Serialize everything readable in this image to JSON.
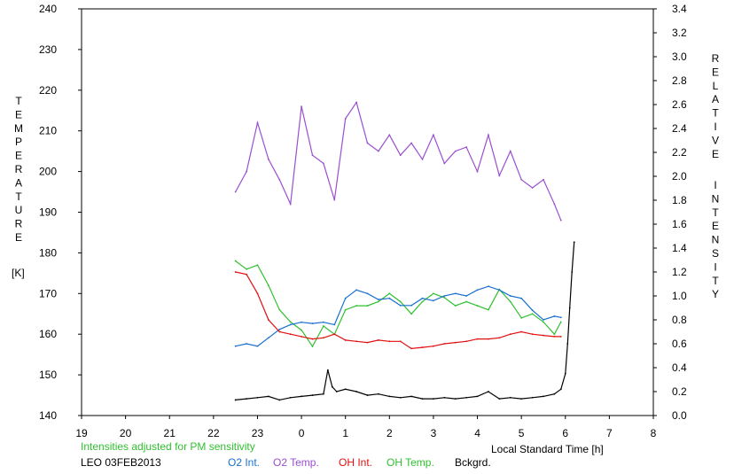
{
  "chart_data": {
    "type": "line",
    "x_axis": {
      "label": "Local Standard Time [h]",
      "ticks": [
        "19",
        "20",
        "21",
        "22",
        "23",
        "0",
        "1",
        "2",
        "3",
        "4",
        "5",
        "6",
        "7",
        "8"
      ],
      "range_hours": [
        19,
        32
      ]
    },
    "y_left": {
      "label_letters": [
        "T",
        "E",
        "M",
        "P",
        "E",
        "R",
        "A",
        "T",
        "U",
        "R",
        "E"
      ],
      "unit": "[K]",
      "range": [
        140,
        240
      ],
      "ticks": [
        "140",
        "150",
        "160",
        "170",
        "180",
        "190",
        "200",
        "210",
        "220",
        "230",
        "240"
      ]
    },
    "y_right": {
      "label_word1": [
        "R",
        "E",
        "L",
        "A",
        "T",
        "I",
        "V",
        "E"
      ],
      "label_word2": [
        "I",
        "N",
        "T",
        "E",
        "N",
        "S",
        "I",
        "T",
        "Y"
      ],
      "range": [
        0,
        3.4
      ],
      "ticks": [
        "0.0",
        "0.2",
        "0.4",
        "0.6",
        "0.8",
        "1.0",
        "1.2",
        "1.4",
        "1.6",
        "1.8",
        "2.0",
        "2.2",
        "2.4",
        "2.6",
        "2.8",
        "3.0",
        "3.2",
        "3.4"
      ]
    },
    "annotations": {
      "note": "Intensities adjusted for PM sensitivity",
      "station": "LEO 03FEB2013"
    },
    "legend": [
      {
        "label": "O2 Int.",
        "color": "#1a6fd0"
      },
      {
        "label": "O2 Temp.",
        "color": "#9a4fd0"
      },
      {
        "label": "OH Int.",
        "color": "#e01010"
      },
      {
        "label": "OH Temp.",
        "color": "#30c030"
      },
      {
        "label": "Bckgrd.",
        "color": "#000000"
      }
    ],
    "series": [
      {
        "name": "O2 Temp.",
        "axis": "left",
        "x": [
          22.5,
          22.75,
          23,
          23.25,
          23.5,
          23.75,
          24,
          24.25,
          24.5,
          24.75,
          25,
          25.25,
          25.5,
          25.75,
          26,
          26.25,
          26.5,
          26.75,
          27,
          27.25,
          27.5,
          27.75,
          28,
          28.25,
          28.5,
          28.75,
          29,
          29.25,
          29.5,
          29.75,
          29.9
        ],
        "y": [
          195,
          200,
          212,
          203,
          198,
          192,
          216,
          204,
          202,
          193,
          213,
          217,
          207,
          205,
          209,
          204,
          207,
          203,
          209,
          202,
          205,
          206,
          200,
          209,
          199,
          205,
          198,
          196,
          198,
          192,
          188
        ]
      },
      {
        "name": "OH Temp.",
        "axis": "left",
        "x": [
          22.5,
          22.75,
          23,
          23.25,
          23.5,
          23.75,
          24,
          24.25,
          24.5,
          24.75,
          25,
          25.25,
          25.5,
          25.75,
          26,
          26.25,
          26.5,
          26.75,
          27,
          27.25,
          27.5,
          27.75,
          28,
          28.25,
          28.5,
          28.75,
          29,
          29.25,
          29.5,
          29.75,
          29.9
        ],
        "y": [
          178,
          176,
          177,
          172,
          166,
          163,
          161,
          157,
          162,
          160,
          166,
          167,
          167,
          168,
          170,
          168,
          165,
          168,
          170,
          169,
          167,
          168,
          167,
          166,
          171,
          168,
          164,
          165,
          163,
          160,
          163
        ]
      },
      {
        "name": "O2 Int.",
        "axis": "right",
        "x": [
          22.5,
          22.75,
          23,
          23.25,
          23.5,
          23.75,
          24,
          24.25,
          24.5,
          24.75,
          25,
          25.25,
          25.5,
          25.75,
          26,
          26.25,
          26.5,
          26.75,
          27,
          27.25,
          27.5,
          27.75,
          28,
          28.25,
          28.5,
          28.75,
          29,
          29.25,
          29.5,
          29.75,
          29.9
        ],
        "y": [
          0.58,
          0.6,
          0.58,
          0.65,
          0.72,
          0.76,
          0.78,
          0.77,
          0.78,
          0.76,
          0.98,
          1.05,
          1.02,
          0.97,
          0.98,
          0.92,
          0.92,
          0.98,
          0.96,
          1.0,
          1.02,
          1.0,
          1.05,
          1.08,
          1.05,
          1.0,
          0.98,
          0.88,
          0.8,
          0.83,
          0.82
        ]
      },
      {
        "name": "OH Int.",
        "axis": "right",
        "x": [
          22.5,
          22.75,
          23,
          23.25,
          23.5,
          23.75,
          24,
          24.25,
          24.5,
          24.75,
          25,
          25.25,
          25.5,
          25.75,
          26,
          26.25,
          26.5,
          26.75,
          27,
          27.25,
          27.5,
          27.75,
          28,
          28.25,
          28.5,
          28.75,
          29,
          29.25,
          29.5,
          29.75,
          29.9
        ],
        "y": [
          1.2,
          1.18,
          1.02,
          0.8,
          0.7,
          0.68,
          0.66,
          0.64,
          0.65,
          0.68,
          0.63,
          0.62,
          0.61,
          0.63,
          0.62,
          0.62,
          0.56,
          0.57,
          0.58,
          0.6,
          0.61,
          0.62,
          0.64,
          0.64,
          0.65,
          0.68,
          0.7,
          0.68,
          0.67,
          0.66,
          0.66
        ]
      },
      {
        "name": "Bckgrd.",
        "axis": "right",
        "x": [
          22.5,
          22.75,
          23,
          23.25,
          23.5,
          23.75,
          24,
          24.25,
          24.5,
          24.6,
          24.7,
          24.8,
          25,
          25.25,
          25.5,
          25.75,
          26,
          26.25,
          26.5,
          26.75,
          27,
          27.25,
          27.5,
          27.75,
          28,
          28.25,
          28.5,
          28.75,
          29,
          29.25,
          29.5,
          29.75,
          29.9,
          30,
          30.05,
          30.1,
          30.15,
          30.2
        ],
        "y": [
          0.13,
          0.14,
          0.15,
          0.16,
          0.13,
          0.15,
          0.16,
          0.17,
          0.18,
          0.38,
          0.24,
          0.2,
          0.22,
          0.2,
          0.17,
          0.18,
          0.16,
          0.15,
          0.16,
          0.14,
          0.14,
          0.15,
          0.14,
          0.15,
          0.16,
          0.2,
          0.14,
          0.15,
          0.14,
          0.15,
          0.16,
          0.18,
          0.22,
          0.35,
          0.6,
          0.9,
          1.2,
          1.45
        ]
      }
    ]
  }
}
